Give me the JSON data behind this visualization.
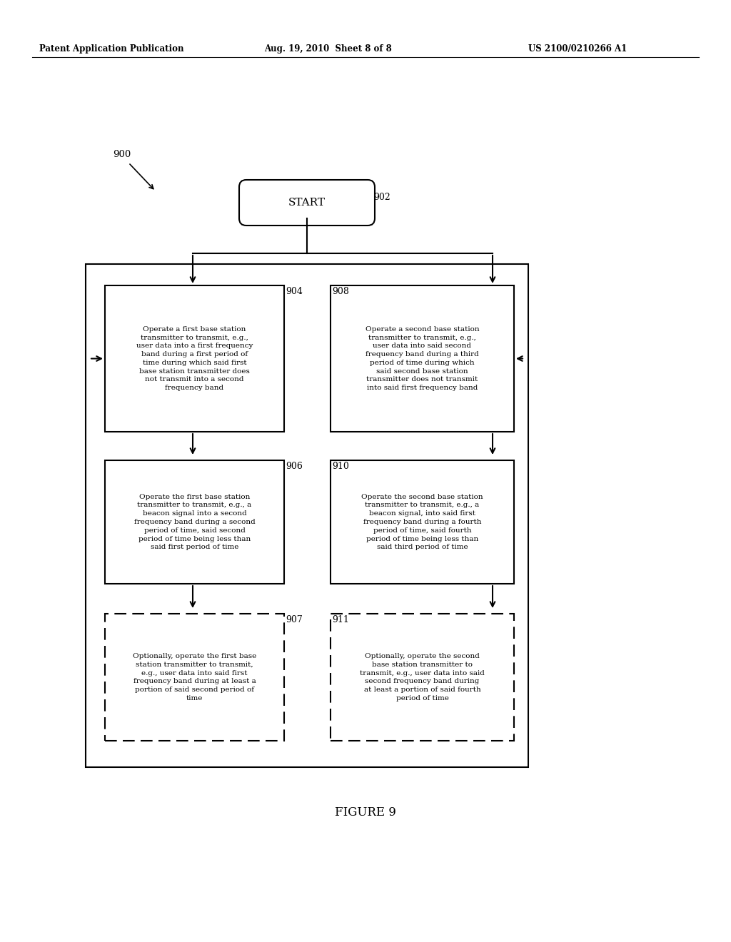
{
  "bg_color": "#ffffff",
  "header_left": "Patent Application Publication",
  "header_mid": "Aug. 19, 2010  Sheet 8 of 8",
  "header_right": "US 2100/0210266 A1",
  "figure_label": "FIGURE 9",
  "diagram_label": "900",
  "start_label": "902",
  "start_text": "START",
  "box904_label": "904",
  "box904_text": "Operate a first base station\ntransmitter to transmit, e.g.,\nuser data into a first frequency\nband during a first period of\ntime during which said first\nbase station transmitter does\nnot transmit into a second\nfrequency band",
  "box908_label": "908",
  "box908_text": "Operate a second base station\ntransmitter to transmit, e.g.,\nuser data into said second\nfrequency band during a third\nperiod of time during which\nsaid second base station\ntransmitter does not transmit\ninto said first frequency band",
  "box906_label": "906",
  "box906_text": "Operate the first base station\ntransmitter to transmit, e.g., a\nbeacon signal into a second\nfrequency band during a second\nperiod of time, said second\nperiod of time being less than\nsaid first period of time",
  "box910_label": "910",
  "box910_text": "Operate the second base station\ntransmitter to transmit, e.g., a\nbeacon signal, into said first\nfrequency band during a fourth\nperiod of time, said fourth\nperiod of time being less than\nsaid third period of time",
  "box907_label": "907",
  "box907_text": "Optionally, operate the first base\nstation transmitter to transmit,\ne.g., user data into said first\nfrequency band during at least a\nportion of said second period of\ntime",
  "box911_label": "911",
  "box911_text": "Optionally, operate the second\nbase station transmitter to\ntransmit, e.g., user data into said\nsecond frequency band during\nat least a portion of said fourth\nperiod of time"
}
